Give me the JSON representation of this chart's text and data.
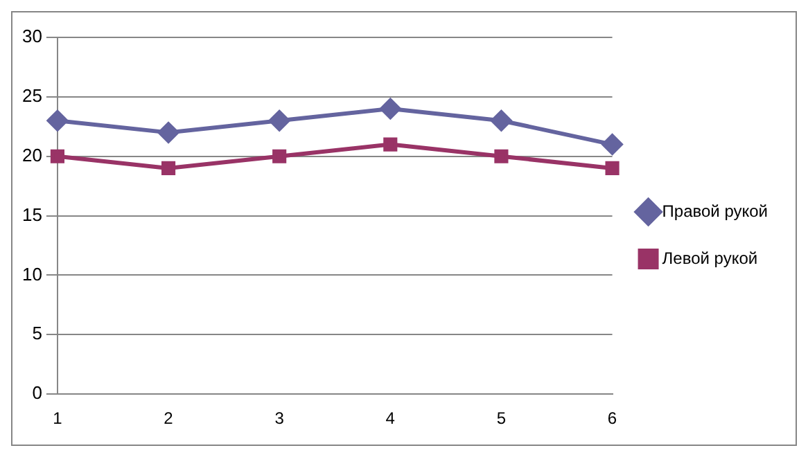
{
  "chart_data": {
    "type": "line",
    "categories": [
      "1",
      "2",
      "3",
      "4",
      "5",
      "6"
    ],
    "series": [
      {
        "name": "Правой рукой",
        "color": "#64649f",
        "marker": "diamond",
        "values": [
          23,
          22,
          23,
          24,
          23,
          21
        ]
      },
      {
        "name": "Левой рукой",
        "color": "#993366",
        "marker": "square",
        "values": [
          20,
          19,
          20,
          21,
          20,
          19
        ]
      }
    ],
    "ylim": [
      0,
      30
    ],
    "yticks": [
      0,
      5,
      10,
      15,
      20,
      25,
      30
    ],
    "grid": "y",
    "legend": "right",
    "line_style": "solid"
  }
}
